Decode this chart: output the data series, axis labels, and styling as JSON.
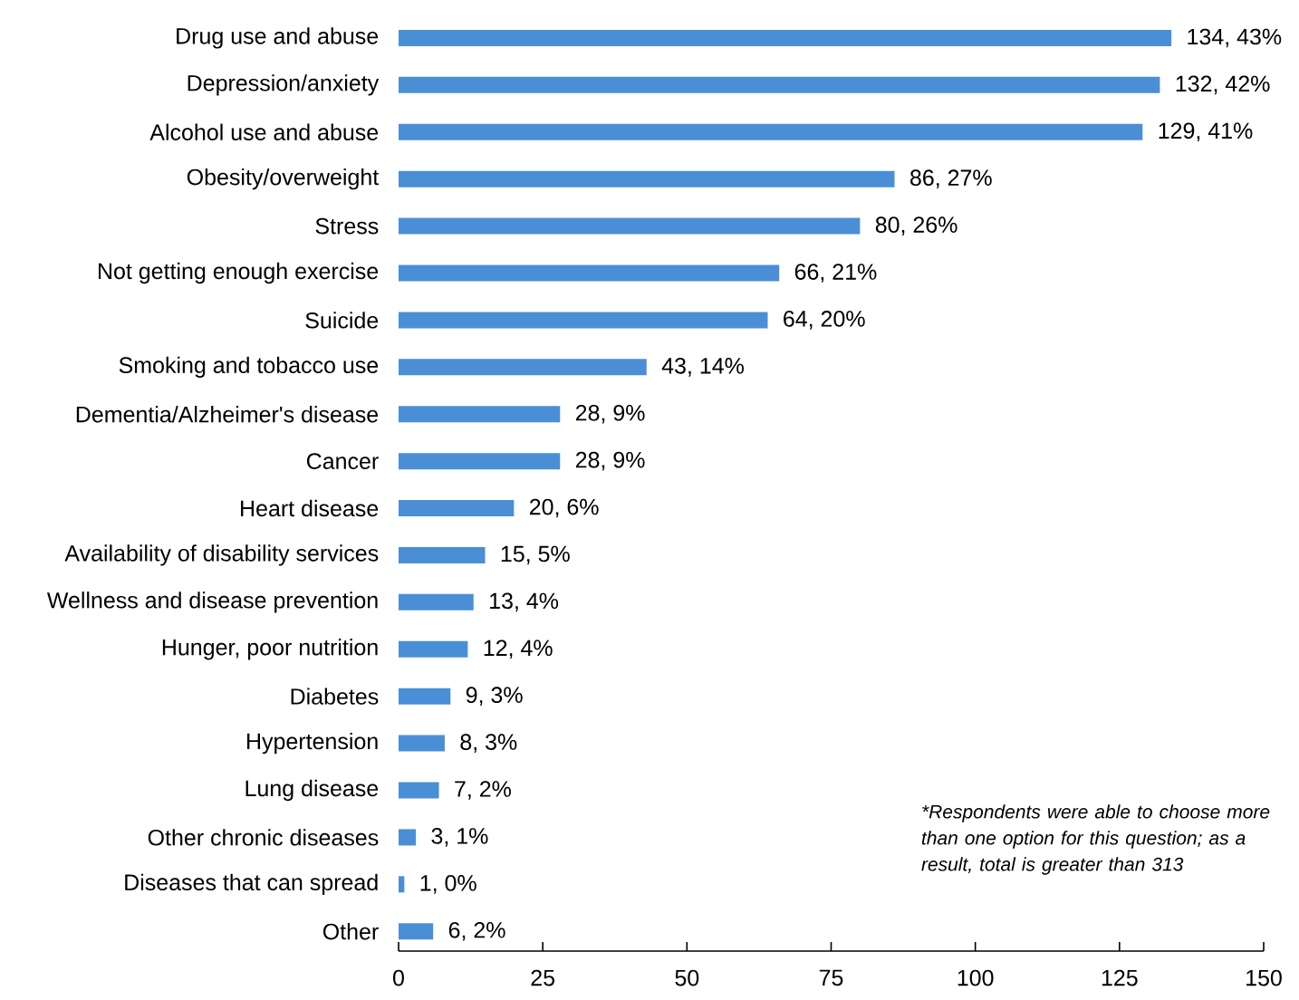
{
  "chart_data": {
    "type": "bar",
    "orientation": "horizontal",
    "color": "#4a8fd6",
    "categories": [
      "Drug use and abuse",
      "Depression/anxiety",
      "Alcohol use and abuse",
      "Obesity/overweight",
      "Stress",
      "Not getting enough exercise",
      "Suicide",
      "Smoking and tobacco use",
      "Dementia/Alzheimer's disease",
      "Cancer",
      "Heart disease",
      "Availability of disability services",
      "Wellness and disease prevention",
      "Hunger, poor nutrition",
      "Diabetes",
      "Hypertension",
      "Lung disease",
      "Other chronic diseases",
      "Diseases that can spread",
      "Other"
    ],
    "values": [
      134,
      132,
      129,
      86,
      80,
      66,
      64,
      43,
      28,
      28,
      20,
      15,
      13,
      12,
      9,
      8,
      7,
      3,
      1,
      6
    ],
    "value_labels": [
      "134, 43%",
      "132, 42%",
      "129, 41%",
      "86, 27%",
      "80, 26%",
      "66, 21%",
      "64, 20%",
      "43, 14%",
      "28, 9%",
      "28, 9%",
      "20, 6%",
      "15, 5%",
      "13, 4%",
      "12, 4%",
      "9, 3%",
      "8, 3%",
      "7, 2%",
      "3, 1%",
      "1, 0%",
      "6, 2%"
    ],
    "xlim": [
      0,
      150
    ],
    "xticks": [
      0,
      25,
      50,
      75,
      100,
      125,
      150
    ],
    "annotations": [
      "*Respondents were able to choose more than one option for this question; as a result, total is greater than 313"
    ]
  }
}
